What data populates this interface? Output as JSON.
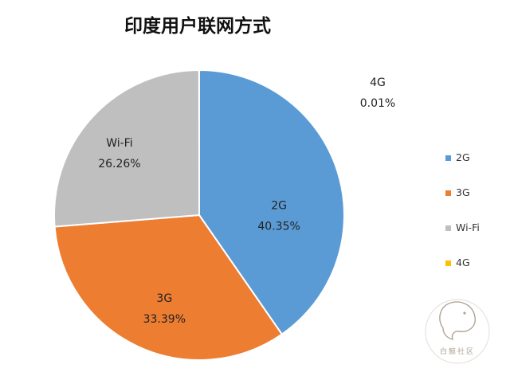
{
  "chart_data": {
    "type": "pie",
    "title": "印度用户联网方式",
    "legend_position": "right",
    "slices": [
      {
        "label": "2G",
        "value": 40.35,
        "display": "40.35%",
        "color": "#5b9bd5"
      },
      {
        "label": "3G",
        "value": 33.39,
        "display": "33.39%",
        "color": "#ed7d31"
      },
      {
        "label": "Wi-Fi",
        "value": 26.26,
        "display": "26.26%",
        "color": "#bfbfbf"
      },
      {
        "label": "4G",
        "value": 0.01,
        "display": "0.01%",
        "color": "#ffc000"
      }
    ]
  },
  "watermark": {
    "text": "白鲸社区",
    "icon": "whale-logo"
  }
}
